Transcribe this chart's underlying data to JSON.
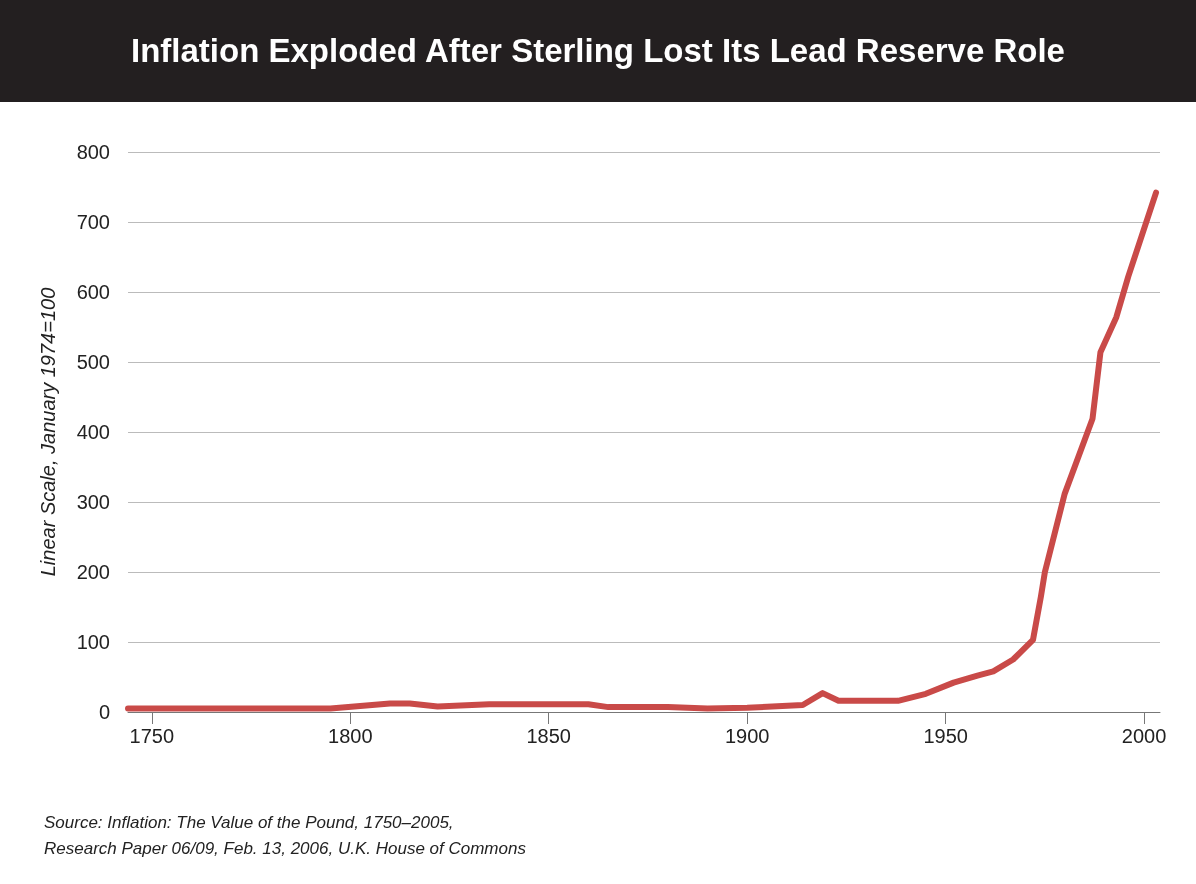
{
  "chart_data": {
    "type": "line",
    "title": "Inflation Exploded After Sterling Lost Its Lead Reserve Role",
    "ylabel": "Linear Scale, January 1974=100",
    "x": [
      1744,
      1795,
      1810,
      1815,
      1822,
      1835,
      1860,
      1865,
      1880,
      1890,
      1900,
      1914,
      1919,
      1923,
      1938,
      1945,
      1952,
      1958,
      1962,
      1967,
      1972,
      1974,
      1975,
      1980,
      1987,
      1989,
      1993,
      1996,
      2003
    ],
    "series": [
      {
        "color": "#c94a48",
        "values": [
          5,
          5,
          12,
          12,
          8,
          11,
          11,
          7,
          7,
          5,
          6,
          10,
          27,
          16,
          16,
          26,
          42,
          52,
          58,
          75,
          103,
          165,
          200,
          312,
          419,
          514,
          564,
          622,
          742
        ]
      }
    ],
    "xlim": [
      1744,
      2004
    ],
    "xticks": [
      1750,
      1800,
      1850,
      1900,
      1950,
      2000
    ],
    "ylim": [
      0,
      800
    ],
    "yticks": [
      0,
      100,
      200,
      300,
      400,
      500,
      600,
      700,
      800
    ],
    "grid": "y",
    "marker": "none",
    "line_style": "solid",
    "annotations": [
      "Source: Inflation: The Value of the Pound, 1750–2005,",
      "Research Paper 06/09, Feb. 13, 2006, U.K. House of Commons"
    ]
  }
}
